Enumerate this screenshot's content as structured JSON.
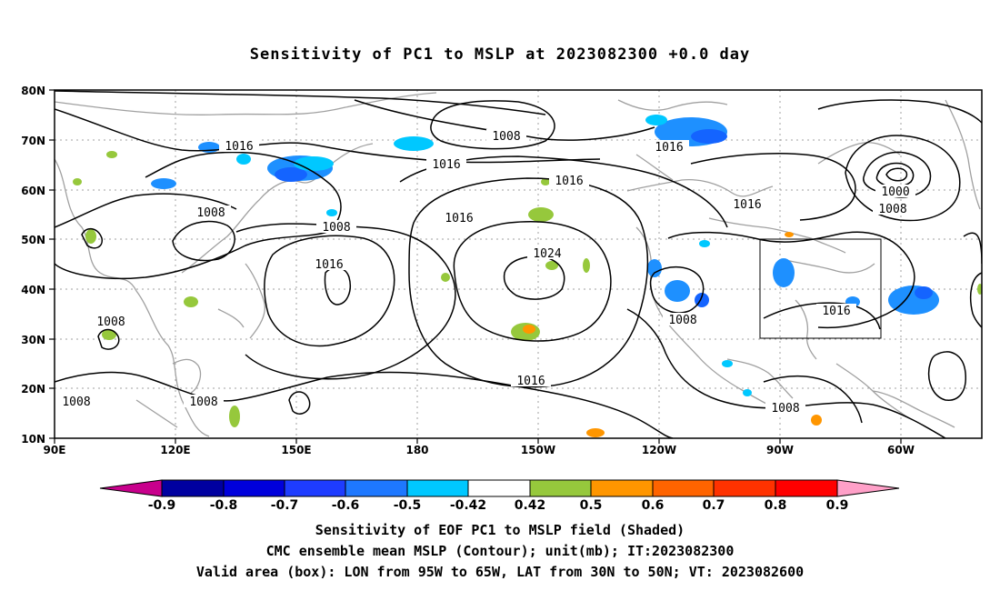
{
  "title": "Sensitivity of PC1 to MSLP at 2023082300 +0.0 day",
  "map": {
    "y_ticks": [
      "80N",
      "70N",
      "60N",
      "50N",
      "40N",
      "30N",
      "20N",
      "10N"
    ],
    "x_ticks": [
      "90E",
      "120E",
      "150E",
      "180",
      "150W",
      "120W",
      "90W",
      "60W"
    ],
    "contour_labels": [
      "1016",
      "1008",
      "1016",
      "1016",
      "1016",
      "1008",
      "1008",
      "1016",
      "1016",
      "1024",
      "1016",
      "1016",
      "1008",
      "1016",
      "1000",
      "1008",
      "1016",
      "1008",
      "1008",
      "1008",
      "1008",
      "1016"
    ],
    "box_label": "Valid area",
    "colors": {
      "contour": "#000000",
      "coastline": "#a0a0a0",
      "grid": "#a0a0a0",
      "neg_05": "#00c8ff",
      "neg_06": "#1e90ff",
      "neg_07": "#1464ff",
      "pos_05": "#96c83c",
      "pos_06": "#ff9600"
    }
  },
  "colorbar": {
    "labels": [
      "-0.9",
      "-0.8",
      "-0.7",
      "-0.6",
      "-0.5",
      "-0.42",
      "0.42",
      "0.5",
      "0.6",
      "0.7",
      "0.8",
      "0.9"
    ],
    "colors": [
      "#0000a0",
      "#0000dc",
      "#1e3cff",
      "#1e78ff",
      "#00c8ff",
      "#ffffff",
      "#96c83c",
      "#ff9600",
      "#ff6400",
      "#ff3200",
      "#ff0000"
    ],
    "low_end_color": "#c8008c",
    "high_end_color": "#ffa0c8"
  },
  "captions": [
    "Sensitivity of EOF PC1 to MSLP field (Shaded)",
    "CMC ensemble mean MSLP (Contour); unit(mb); IT:2023082300",
    "Valid area (box): LON from 95W to 65W, LAT from 30N to 50N; VT: 2023082600"
  ]
}
